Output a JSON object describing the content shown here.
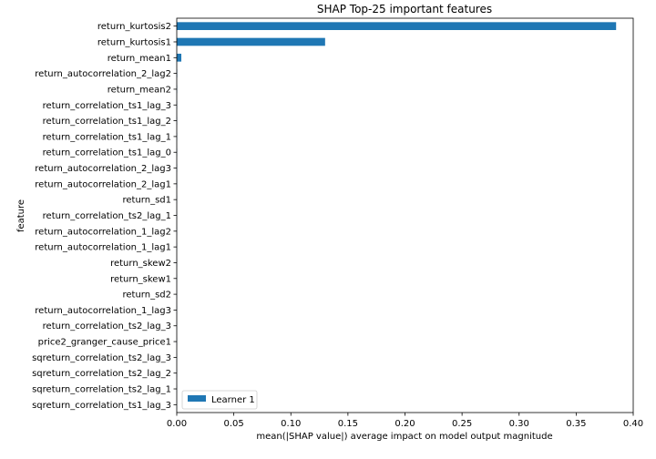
{
  "chart_data": {
    "type": "bar",
    "orientation": "horizontal",
    "title": "SHAP Top-25 important features",
    "xlabel": "mean(|SHAP value|) average impact on model output magnitude",
    "ylabel": "feature",
    "xlim": [
      0,
      0.4
    ],
    "xticks": [
      "0.00",
      "0.05",
      "0.10",
      "0.15",
      "0.20",
      "0.25",
      "0.30",
      "0.35",
      "0.40"
    ],
    "grid": false,
    "legend_position": "lower-left",
    "bar_color": "#1f77b4",
    "categories": [
      "return_kurtosis2",
      "return_kurtosis1",
      "return_mean1",
      "return_autocorrelation_2_lag2",
      "return_mean2",
      "return_correlation_ts1_lag_3",
      "return_correlation_ts1_lag_2",
      "return_correlation_ts1_lag_1",
      "return_correlation_ts1_lag_0",
      "return_autocorrelation_2_lag3",
      "return_autocorrelation_2_lag1",
      "return_sd1",
      "return_correlation_ts2_lag_1",
      "return_autocorrelation_1_lag2",
      "return_autocorrelation_1_lag1",
      "return_skew2",
      "return_skew1",
      "return_sd2",
      "return_autocorrelation_1_lag3",
      "return_correlation_ts2_lag_3",
      "price2_granger_cause_price1",
      "sqreturn_correlation_ts2_lag_3",
      "sqreturn_correlation_ts2_lag_2",
      "sqreturn_correlation_ts2_lag_1",
      "sqreturn_correlation_ts1_lag_3"
    ],
    "series": [
      {
        "name": "Learner 1",
        "values": [
          0.385,
          0.13,
          0.004,
          0.0004,
          0.0003,
          0.0002,
          0.0002,
          0.0002,
          0.0002,
          0.0002,
          0.0002,
          0.0001,
          0.0001,
          0.0001,
          0.0001,
          0.0001,
          0.0001,
          0.0001,
          0.0001,
          0.0001,
          0.0001,
          0.0001,
          0.0001,
          0.0001,
          0.0001
        ]
      }
    ]
  }
}
